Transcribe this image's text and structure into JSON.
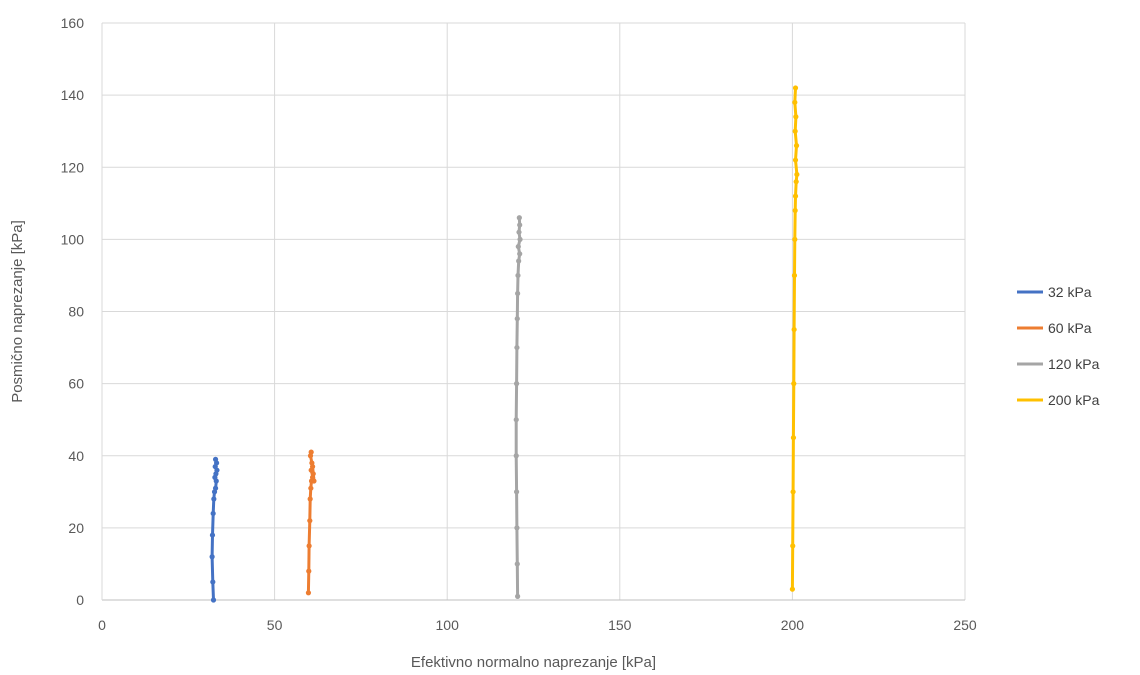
{
  "chart_data": {
    "type": "line",
    "title": "",
    "xlabel": "Efektivno normalno naprezanje [kPa]",
    "ylabel": "Posmično naprezanje [kPa]",
    "xlim": [
      0,
      250
    ],
    "ylim": [
      0,
      160
    ],
    "xticks": [
      0,
      50,
      100,
      150,
      200,
      250
    ],
    "yticks": [
      0,
      20,
      40,
      60,
      80,
      100,
      120,
      140,
      160
    ],
    "grid": true,
    "legend_position": "right",
    "series": [
      {
        "name": "32 kPa",
        "color": "#4472C4",
        "x": [
          32.3,
          32.1,
          31.9,
          32.0,
          32.2,
          32.4,
          32.6,
          32.9,
          33.1,
          32.7,
          33.0,
          33.3,
          32.8,
          33.2,
          32.9
        ],
        "y": [
          0,
          5,
          12,
          18,
          24,
          28,
          30,
          31,
          33,
          34,
          35,
          36,
          37,
          38,
          39
        ]
      },
      {
        "name": "60 kPa",
        "color": "#ED7D31",
        "x": [
          59.8,
          59.9,
          60.0,
          60.2,
          60.3,
          60.5,
          60.7,
          61.0,
          61.2,
          60.6,
          61.4,
          61.0,
          60.8,
          60.4,
          60.6
        ],
        "y": [
          2,
          8,
          15,
          22,
          28,
          31,
          33,
          34,
          35,
          36,
          33,
          37,
          38,
          40,
          41
        ]
      },
      {
        "name": "120 kPa",
        "color": "#A5A5A5",
        "x": [
          120.4,
          120.3,
          120.2,
          120.1,
          120.0,
          120.0,
          120.1,
          120.2,
          120.3,
          120.4,
          120.5,
          120.7,
          121.0,
          120.6,
          121.1,
          120.8,
          121.0,
          120.9
        ],
        "y": [
          1,
          10,
          20,
          30,
          40,
          50,
          60,
          70,
          78,
          85,
          90,
          94,
          96,
          98,
          100,
          102,
          104,
          106
        ]
      },
      {
        "name": "200 kPa",
        "color": "#FFC000",
        "x": [
          200.0,
          200.1,
          200.2,
          200.3,
          200.4,
          200.5,
          200.6,
          200.7,
          200.8,
          200.9,
          201.1,
          201.3,
          200.9,
          201.2,
          200.8,
          201.0,
          200.7,
          200.9
        ],
        "y": [
          3,
          15,
          30,
          45,
          60,
          75,
          90,
          100,
          108,
          112,
          116,
          118,
          122,
          126,
          130,
          134,
          138,
          142
        ]
      }
    ]
  }
}
